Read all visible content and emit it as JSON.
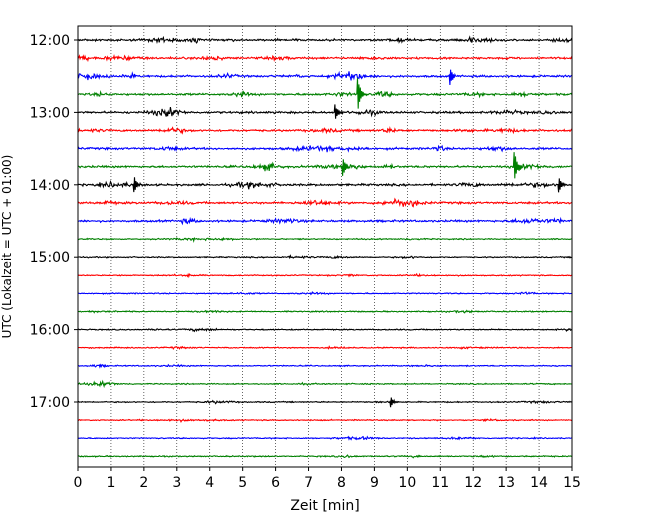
{
  "chart_data": {
    "type": "line",
    "subtype": "helicorder",
    "xlabel": "Zeit  [min]",
    "ylabel": "UTC (Lokalzeit = UTC + 01:00)",
    "xlim": [
      0,
      15
    ],
    "x_ticks": [
      "0",
      "1",
      "2",
      "3",
      "4",
      "5",
      "6",
      "7",
      "8",
      "9",
      "10",
      "11",
      "12",
      "13",
      "14",
      "15"
    ],
    "y_tick_labels": [
      "12:00",
      "13:00",
      "14:00",
      "15:00",
      "16:00",
      "17:00"
    ],
    "start_time": "12:00",
    "minutes_per_line": 15,
    "line_count": 24,
    "colors": [
      "#000000",
      "#ff0000",
      "#0000ff",
      "#008000"
    ],
    "grid": {
      "x_vertical_dotted": true
    },
    "events": [
      {
        "line": 3,
        "minute": 8.5,
        "amplitude": "large"
      },
      {
        "line": 7,
        "minute": 13.25,
        "amplitude": "large"
      },
      {
        "line": 4,
        "minute": 7.8,
        "amplitude": "medium"
      },
      {
        "line": 7,
        "minute": 8.05,
        "amplitude": "medium"
      },
      {
        "line": 8,
        "minute": 1.7,
        "amplitude": "medium"
      },
      {
        "line": 8,
        "minute": 14.6,
        "amplitude": "medium"
      },
      {
        "line": 2,
        "minute": 11.3,
        "amplitude": "medium"
      },
      {
        "line": 20,
        "minute": 9.5,
        "amplitude": "small"
      }
    ]
  }
}
